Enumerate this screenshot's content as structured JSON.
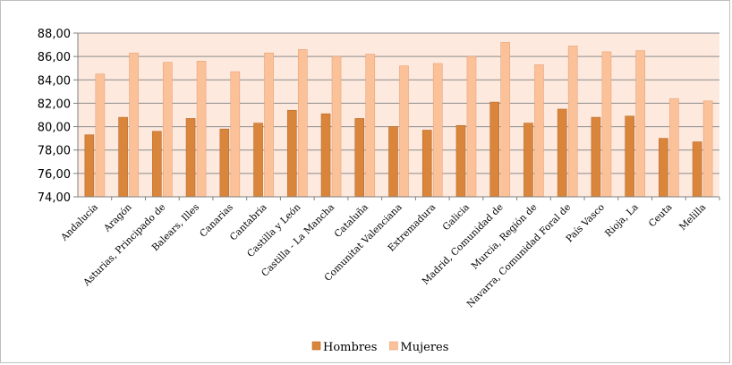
{
  "chart_data": {
    "type": "bar",
    "categories": [
      "Andalucía",
      "Aragón",
      "Asturias, Principado de",
      "Balears, Illes",
      "Canarias",
      "Cantabria",
      "Castilla y León",
      "Castilla - La Mancha",
      "Cataluña",
      "Comunitat Valenciana",
      "Extremadura",
      "Galicia",
      "Madrid, Comunidad de",
      "Murcia, Región de",
      "Navarra, Comunidad Foral de",
      "País Vasco",
      "Rioja, La",
      "Ceuta",
      "Melilla"
    ],
    "series": [
      {
        "name": "Hombres",
        "color": "#d9853b",
        "values": [
          79.3,
          80.8,
          79.6,
          80.7,
          79.8,
          80.3,
          81.4,
          81.1,
          80.7,
          80.0,
          79.7,
          80.1,
          82.1,
          80.3,
          81.5,
          80.8,
          80.9,
          79.0,
          78.7
        ]
      },
      {
        "name": "Mujeres",
        "color": "#fbc29a",
        "values": [
          84.5,
          86.3,
          85.5,
          85.6,
          84.7,
          86.3,
          86.6,
          86.0,
          86.2,
          85.2,
          85.4,
          86.0,
          87.2,
          85.3,
          86.9,
          86.4,
          86.5,
          82.4,
          82.2
        ]
      }
    ],
    "y_ticks": [
      "74,00",
      "76,00",
      "78,00",
      "80,00",
      "82,00",
      "84,00",
      "86,00",
      "88,00"
    ],
    "ylim": [
      74,
      88
    ],
    "grid": true,
    "plot_background": "#fde9de",
    "legend_position": "bottom"
  }
}
